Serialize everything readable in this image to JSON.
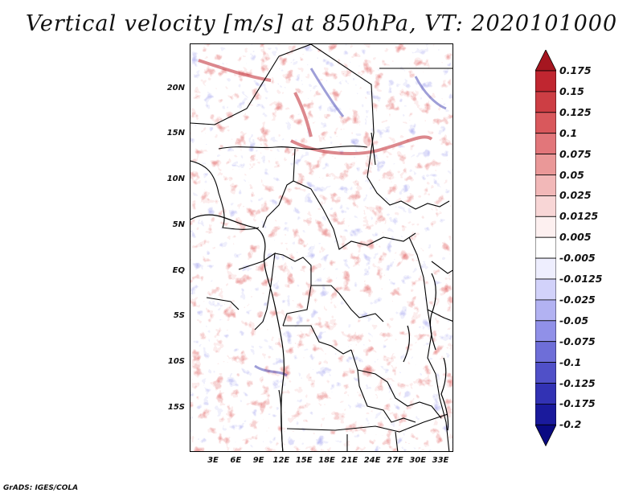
{
  "title": "Vertical velocity [m/s] at 850hPa, VT: 2020101000",
  "footer": "GrADS: IGES/COLA",
  "map": {
    "lat_ticks": [
      "20N",
      "15N",
      "10N",
      "5N",
      "EQ",
      "5S",
      "10S",
      "15S"
    ],
    "lon_ticks": [
      "3E",
      "6E",
      "9E",
      "12E",
      "15E",
      "18E",
      "21E",
      "24E",
      "27E",
      "30E",
      "33E"
    ]
  },
  "colorbar": {
    "labels": [
      "0.175",
      "0.15",
      "0.125",
      "0.1",
      "0.075",
      "0.05",
      "0.025",
      "0.0125",
      "0.005",
      "-0.005",
      "-0.0125",
      "-0.025",
      "-0.05",
      "-0.075",
      "-0.1",
      "-0.125",
      "-0.175",
      "-0.2"
    ],
    "colors": [
      "#a51620",
      "#c02630",
      "#cd3e44",
      "#d9585c",
      "#e2767a",
      "#ea9898",
      "#f2b8b8",
      "#f8d6d6",
      "#fdf0f0",
      "#ffffff",
      "#eeeefe",
      "#d2d2fa",
      "#b2b2f2",
      "#9090e8",
      "#6e6ed8",
      "#5050c8",
      "#3232b4",
      "#1a1a9c",
      "#0a0a82"
    ]
  },
  "chart_data": {
    "type": "heatmap",
    "title": "Vertical velocity [m/s] at 850hPa, VT: 2020101000",
    "variable": "Vertical velocity",
    "units": "m/s",
    "level": "850hPa",
    "valid_time": "2020101000",
    "lon_range": [
      0,
      34.5
    ],
    "lat_range": [
      -19.5,
      24.5
    ],
    "contour_levels": [
      -0.2,
      -0.175,
      -0.125,
      -0.1,
      -0.075,
      -0.05,
      -0.025,
      -0.0125,
      -0.005,
      0.005,
      0.0125,
      0.025,
      0.05,
      0.075,
      0.1,
      0.125,
      0.15,
      0.175
    ]
  }
}
